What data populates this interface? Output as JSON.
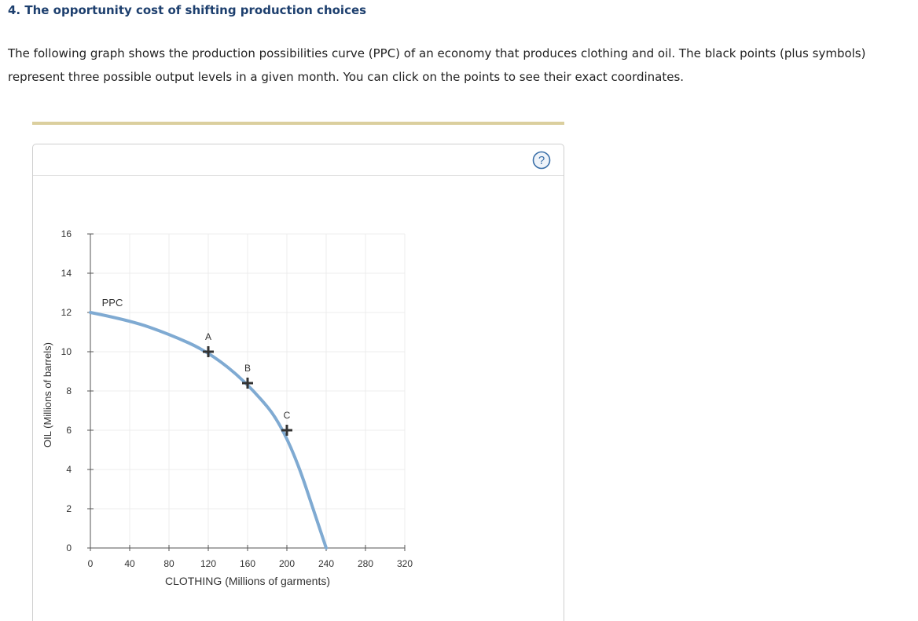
{
  "question": {
    "title": "4. The opportunity cost of shifting production choices",
    "description_line1": "The following graph shows the production possibilities curve (PPC) of an economy that produces clothing and oil. The black points (plus symbols)",
    "description_line2": "represent three possible output levels in a given month. You can click on the points to see their exact coordinates."
  },
  "help_button": {
    "symbol": "?"
  },
  "colors": {
    "curve": "#7faad2",
    "point": "#333333",
    "help": "#3a6fa8",
    "divider": "#dbcf9e"
  },
  "chart_data": {
    "type": "line",
    "title": "",
    "xlabel": "CLOTHING (Millions of garments)",
    "ylabel": "OIL (Millions of barrels)",
    "xlim": [
      0,
      320
    ],
    "ylim": [
      0,
      16
    ],
    "xticks": [
      0,
      40,
      80,
      120,
      160,
      200,
      240,
      280,
      320
    ],
    "yticks": [
      0,
      2,
      4,
      6,
      8,
      10,
      12,
      14,
      16
    ],
    "grid": true,
    "series": [
      {
        "name": "PPC",
        "x": [
          0,
          40,
          80,
          120,
          160,
          200,
          240
        ],
        "y": [
          12,
          11.6,
          10.9,
          10,
          8.4,
          6,
          0
        ]
      }
    ],
    "points": [
      {
        "label": "A",
        "x": 120,
        "y": 10
      },
      {
        "label": "B",
        "x": 160,
        "y": 8.4
      },
      {
        "label": "C",
        "x": 200,
        "y": 6
      }
    ]
  }
}
